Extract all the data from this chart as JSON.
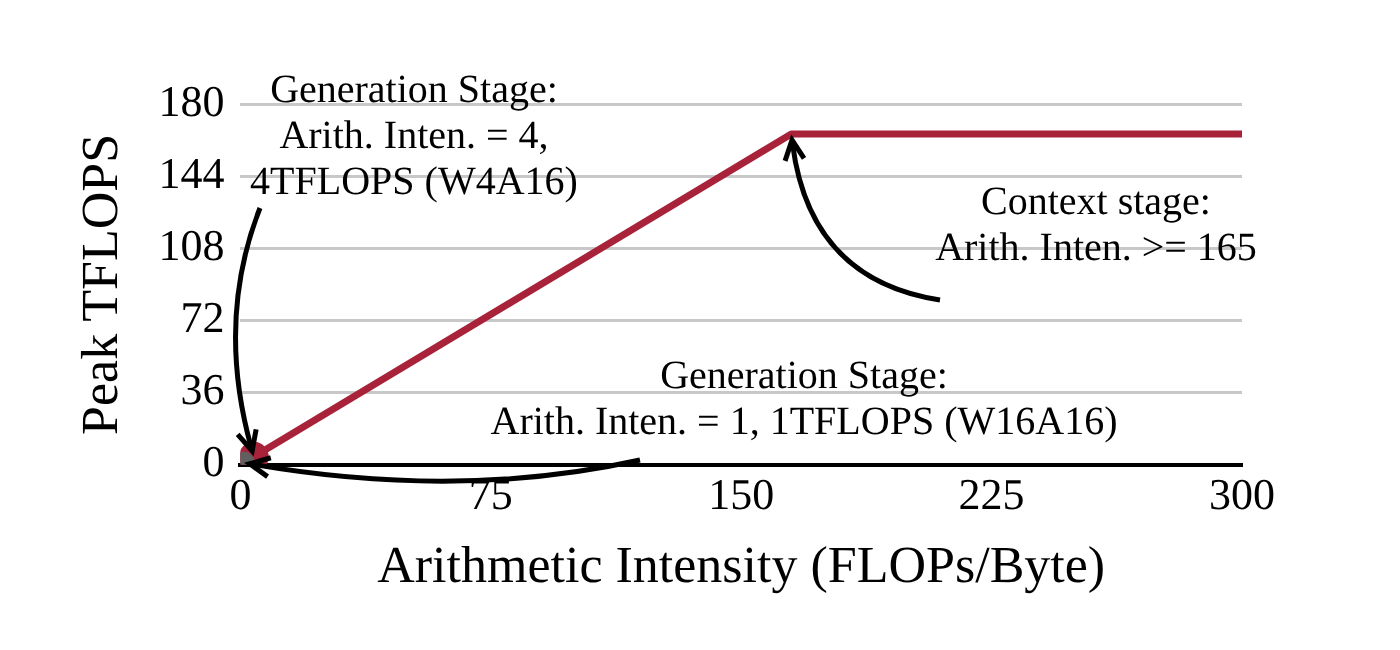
{
  "chart_data": {
    "type": "line",
    "xlabel": "Arithmetic Intensity (FLOPs/Byte)",
    "ylabel": "Peak TFLOPS",
    "xlim": [
      0,
      300
    ],
    "xticks": [
      0,
      75,
      150,
      225,
      300
    ],
    "ylim": [
      0,
      180
    ],
    "yticks": [
      0,
      36,
      72,
      108,
      144,
      180
    ],
    "grid": "y",
    "legend": false,
    "series": [
      {
        "x": [
          4,
          165,
          300
        ],
        "values": [
          4,
          165,
          165
        ],
        "color": "#a8233a",
        "marker": "none"
      },
      {
        "type": "scatter",
        "x": [
          4
        ],
        "values": [
          4
        ],
        "color": "#a8233a",
        "marker": "circle"
      },
      {
        "type": "scatter",
        "x": [
          1
        ],
        "values": [
          1
        ],
        "color": "#606060",
        "marker": "circle"
      }
    ],
    "annotations": [
      {
        "text": "Generation Stage:\nArith. Inten. = 4,\n4TFLOPS (W4A16)",
        "x": 4,
        "y": 4
      },
      {
        "text": "Context stage:\nArith. Inten. >= 165",
        "x": 165,
        "y": 165
      },
      {
        "text": "Generation Stage:\nArith. Inten. = 1, 1TFLOPS (W16A16)",
        "x": 1,
        "y": 1
      }
    ]
  }
}
